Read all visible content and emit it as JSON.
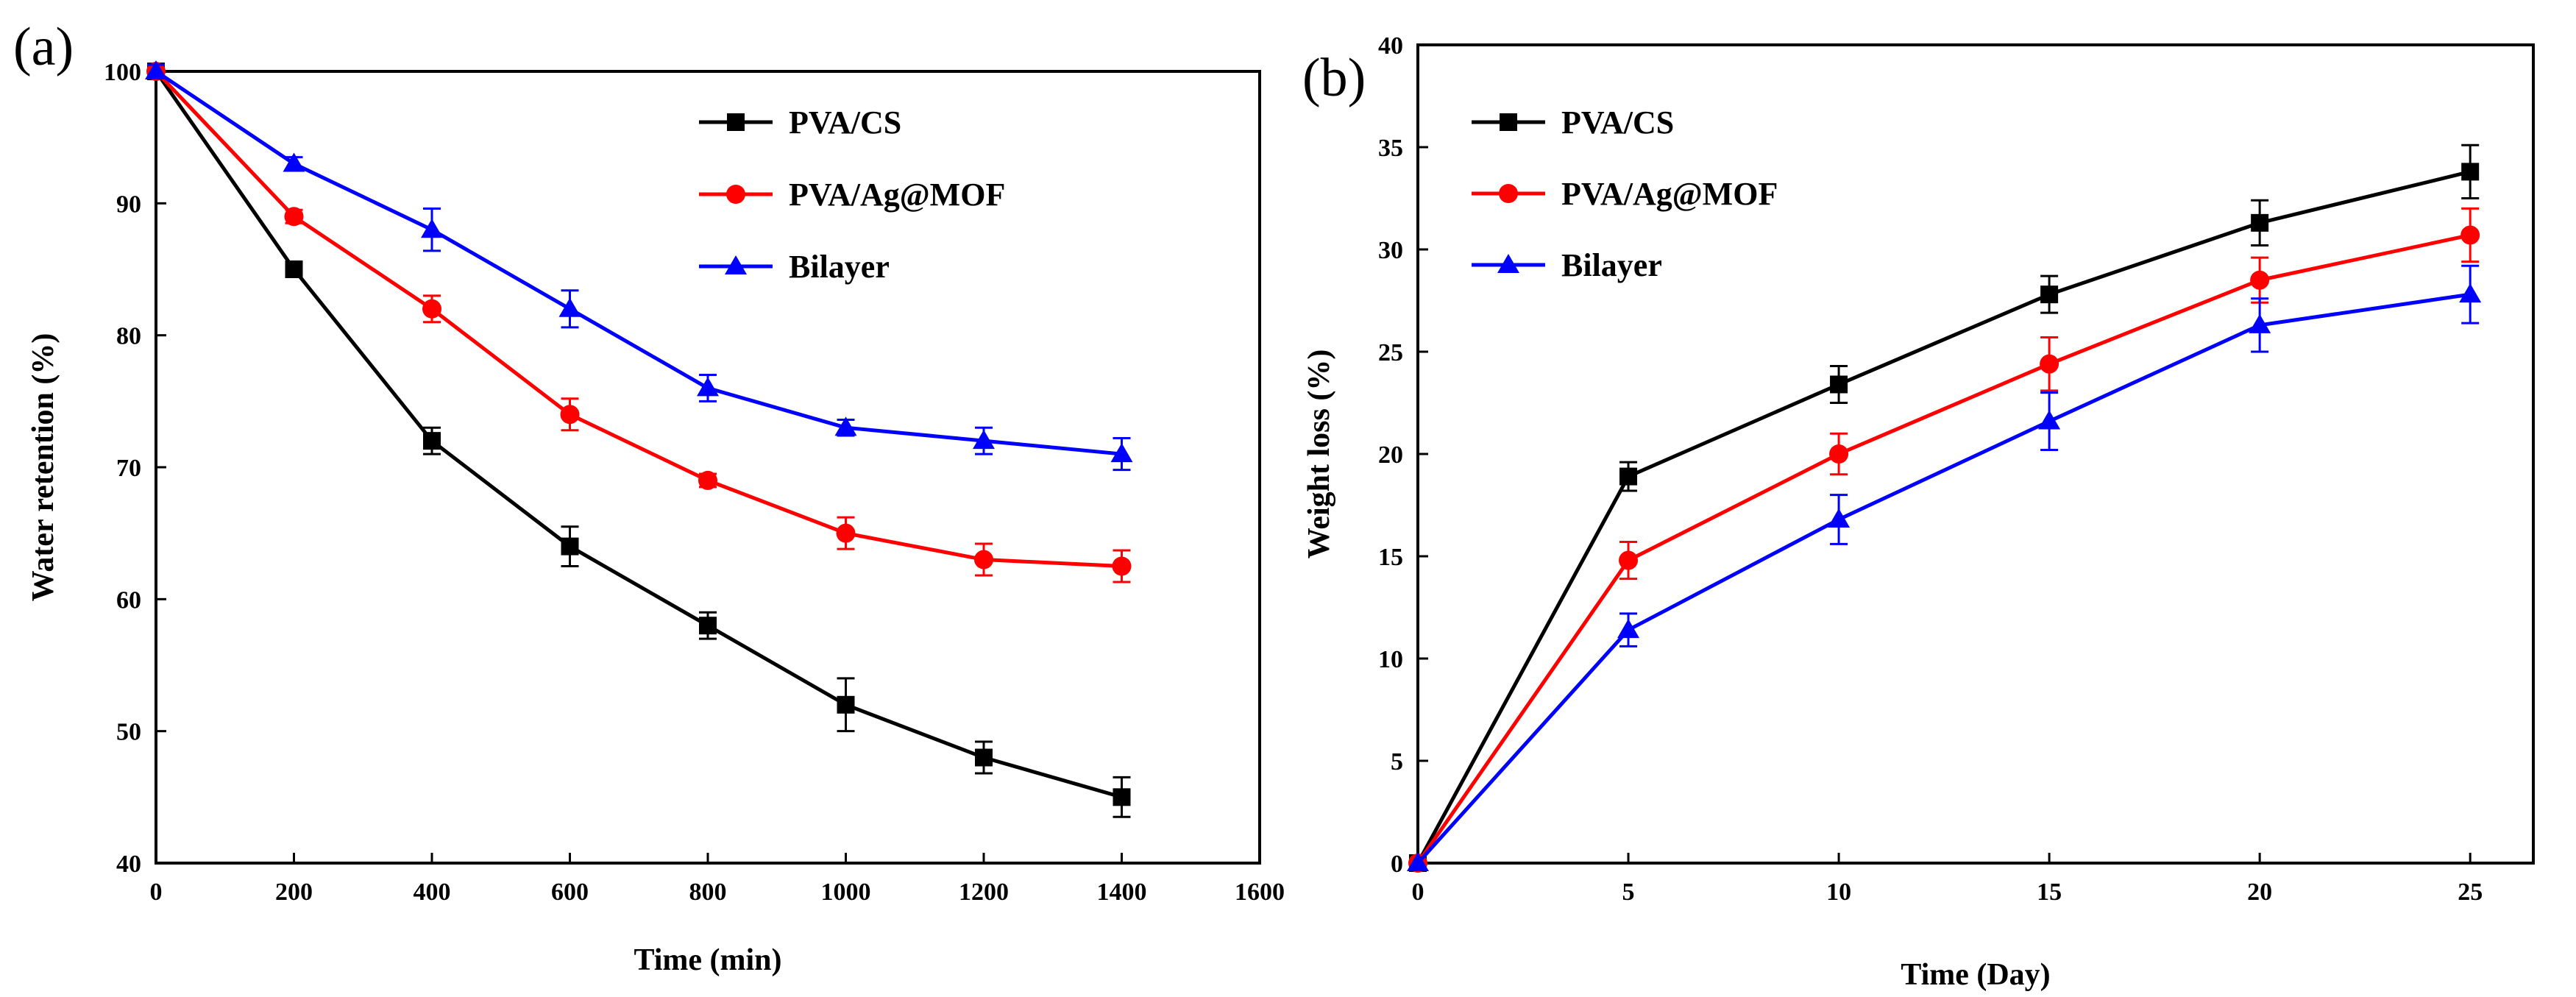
{
  "chart_data": [
    {
      "type": "line",
      "panel_label": "(a)",
      "xlabel": "Time (min)",
      "ylabel": "Water retention (%)",
      "xlim": [
        0,
        1600
      ],
      "ylim": [
        40,
        100
      ],
      "xticks": [
        0,
        200,
        400,
        600,
        800,
        1000,
        1200,
        1400,
        1600
      ],
      "yticks": [
        40,
        50,
        60,
        70,
        80,
        90,
        100
      ],
      "x": [
        0,
        200,
        400,
        600,
        800,
        1000,
        1200,
        1400
      ],
      "legend_position": "top-right",
      "grid": false,
      "series": [
        {
          "name": "PVA/CS",
          "color": "#000000",
          "marker": "square",
          "values": [
            100,
            85,
            72,
            64,
            58,
            52,
            48,
            45
          ],
          "errors": [
            0.5,
            0.5,
            1.0,
            1.5,
            1.0,
            2.0,
            1.2,
            1.5
          ]
        },
        {
          "name": "PVA/Ag@MOF",
          "color": "#ff0000",
          "marker": "circle",
          "values": [
            100,
            89,
            82,
            74,
            69,
            65,
            63,
            62.5
          ],
          "errors": [
            0.5,
            0.5,
            1.0,
            1.2,
            0.5,
            1.2,
            1.2,
            1.2
          ]
        },
        {
          "name": "Bilayer",
          "color": "#0000ff",
          "marker": "triangle",
          "values": [
            100,
            93,
            88,
            82,
            76,
            73,
            72,
            71
          ],
          "errors": [
            0.5,
            0.5,
            1.6,
            1.4,
            1.0,
            0.6,
            1.0,
            1.2
          ]
        }
      ]
    },
    {
      "type": "line",
      "panel_label": "(b)",
      "xlabel": "Time (Day)",
      "ylabel": "Weight loss (%)",
      "xlim": [
        0,
        26.5
      ],
      "ylim": [
        0,
        40
      ],
      "xticks": [
        0,
        5,
        10,
        15,
        20,
        25
      ],
      "yticks": [
        0,
        5,
        10,
        15,
        20,
        25,
        30,
        35,
        40
      ],
      "x": [
        0,
        5,
        10,
        15,
        20,
        25
      ],
      "legend_position": "top-left",
      "grid": false,
      "series": [
        {
          "name": "PVA/CS",
          "color": "#000000",
          "marker": "square",
          "values": [
            0,
            18.9,
            23.4,
            27.8,
            31.3,
            33.8
          ],
          "errors": [
            0,
            0.7,
            0.9,
            0.9,
            1.1,
            1.3
          ]
        },
        {
          "name": "PVA/Ag@MOF",
          "color": "#ff0000",
          "marker": "circle",
          "values": [
            0,
            14.8,
            20.0,
            24.4,
            28.5,
            30.7
          ],
          "errors": [
            0,
            0.9,
            1.0,
            1.3,
            1.1,
            1.3
          ]
        },
        {
          "name": "Bilayer",
          "color": "#0000ff",
          "marker": "triangle",
          "values": [
            0,
            11.4,
            16.8,
            21.6,
            26.3,
            27.8
          ],
          "errors": [
            0,
            0.8,
            1.2,
            1.4,
            1.3,
            1.4
          ]
        }
      ]
    }
  ]
}
